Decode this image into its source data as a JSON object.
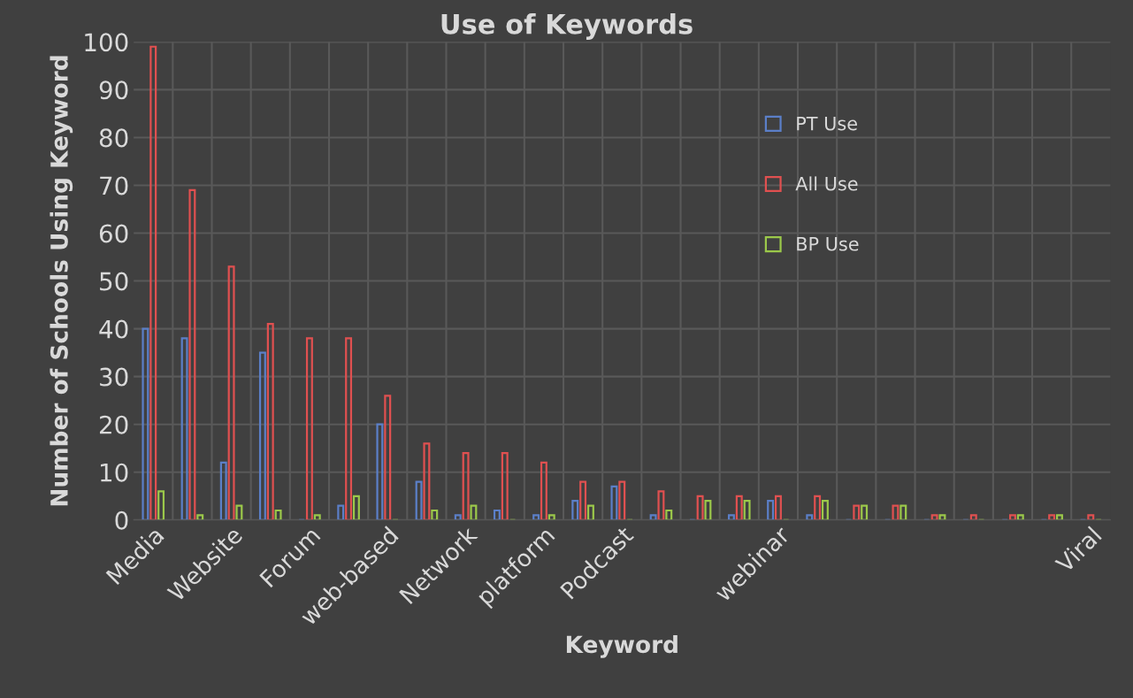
{
  "chart_data": {
    "type": "bar",
    "title": "Use of Keywords",
    "xlabel": "Keyword",
    "ylabel": "Number of Schools Using Keyword",
    "categories": [
      "Media",
      null,
      "Website",
      null,
      "Forum",
      null,
      "web-based",
      null,
      "Network",
      null,
      "platform",
      null,
      "Podcast",
      null,
      null,
      null,
      "webinar",
      null,
      null,
      null,
      null,
      null,
      null,
      null,
      "Viral"
    ],
    "series": [
      {
        "name": "PT Use",
        "color": "#5b7fc8",
        "values": [
          40,
          38,
          12,
          35,
          0,
          3,
          20,
          8,
          1,
          2,
          1,
          4,
          7,
          1,
          0,
          1,
          4,
          1,
          0,
          0,
          0,
          0,
          0,
          0,
          0
        ]
      },
      {
        "name": "All Use",
        "color": "#e05050",
        "values": [
          99,
          69,
          53,
          41,
          38,
          38,
          26,
          16,
          14,
          14,
          12,
          8,
          8,
          6,
          5,
          5,
          5,
          5,
          3,
          3,
          1,
          1,
          1,
          1,
          1
        ]
      },
      {
        "name": "BP Use",
        "color": "#9bc84a",
        "values": [
          6,
          1,
          3,
          2,
          1,
          5,
          0,
          2,
          3,
          0,
          1,
          3,
          0,
          2,
          4,
          4,
          0,
          4,
          3,
          3,
          1,
          0,
          1,
          1,
          0
        ]
      }
    ],
    "ylim": [
      0,
      100
    ],
    "yticks": [
      0,
      10,
      20,
      30,
      40,
      50,
      60,
      70,
      80,
      90,
      100
    ],
    "grid": true,
    "legend": "right"
  }
}
